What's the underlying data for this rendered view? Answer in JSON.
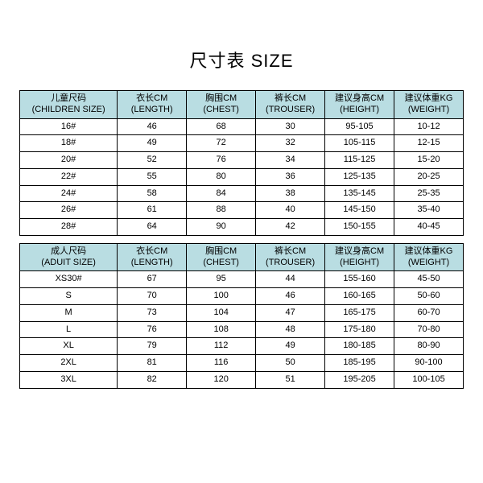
{
  "title": "尺寸表 SIZE",
  "colors": {
    "header_bg": "#b9dde2",
    "border": "#000000",
    "background": "#ffffff",
    "text": "#000000"
  },
  "children_table": {
    "type": "table",
    "columns": [
      {
        "line1": "儿童尺码",
        "line2": "(CHILDREN SIZE)"
      },
      {
        "line1": "衣长CM",
        "line2": "(LENGTH)"
      },
      {
        "line1": "胸围CM",
        "line2": "(CHEST)"
      },
      {
        "line1": "裤长CM",
        "line2": "(TROUSER)"
      },
      {
        "line1": "建议身高CM",
        "line2": "(HEIGHT)"
      },
      {
        "line1": "建议体重KG",
        "line2": "(WEIGHT)"
      }
    ],
    "rows": [
      [
        "16#",
        "46",
        "68",
        "30",
        "95-105",
        "10-12"
      ],
      [
        "18#",
        "49",
        "72",
        "32",
        "105-115",
        "12-15"
      ],
      [
        "20#",
        "52",
        "76",
        "34",
        "115-125",
        "15-20"
      ],
      [
        "22#",
        "55",
        "80",
        "36",
        "125-135",
        "20-25"
      ],
      [
        "24#",
        "58",
        "84",
        "38",
        "135-145",
        "25-35"
      ],
      [
        "26#",
        "61",
        "88",
        "40",
        "145-150",
        "35-40"
      ],
      [
        "28#",
        "64",
        "90",
        "42",
        "150-155",
        "40-45"
      ]
    ]
  },
  "adult_table": {
    "type": "table",
    "columns": [
      {
        "line1": "成人尺码",
        "line2": "(ADUIT SIZE)"
      },
      {
        "line1": "衣长CM",
        "line2": "(LENGTH)"
      },
      {
        "line1": "胸围CM",
        "line2": "(CHEST)"
      },
      {
        "line1": "裤长CM",
        "line2": "(TROUSER)"
      },
      {
        "line1": "建议身高CM",
        "line2": "(HEIGHT)"
      },
      {
        "line1": "建议体重KG",
        "line2": "(WEIGHT)"
      }
    ],
    "rows": [
      [
        "XS30#",
        "67",
        "95",
        "44",
        "155-160",
        "45-50"
      ],
      [
        "S",
        "70",
        "100",
        "46",
        "160-165",
        "50-60"
      ],
      [
        "M",
        "73",
        "104",
        "47",
        "165-175",
        "60-70"
      ],
      [
        "L",
        "76",
        "108",
        "48",
        "175-180",
        "70-80"
      ],
      [
        "XL",
        "79",
        "112",
        "49",
        "180-185",
        "80-90"
      ],
      [
        "2XL",
        "81",
        "116",
        "50",
        "185-195",
        "90-100"
      ],
      [
        "3XL",
        "82",
        "120",
        "51",
        "195-205",
        "100-105"
      ]
    ]
  }
}
